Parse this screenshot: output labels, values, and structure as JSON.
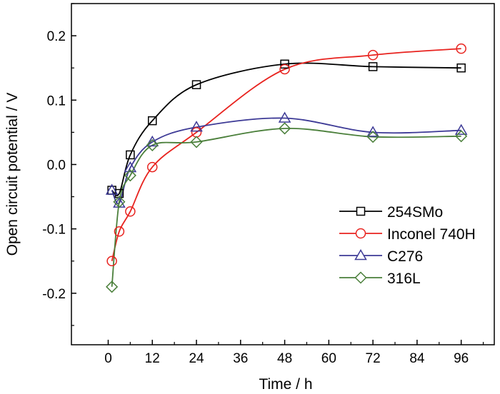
{
  "chart_data": {
    "type": "line",
    "title": "",
    "xlabel": "Time / h",
    "ylabel": "Open circuit potential / V",
    "xlim": [
      -10,
      105
    ],
    "ylim": [
      -0.28,
      0.25
    ],
    "xticks": [
      0,
      12,
      24,
      36,
      48,
      60,
      72,
      84,
      96
    ],
    "yticks": [
      -0.2,
      -0.1,
      0.0,
      0.1,
      0.2
    ],
    "ytick_labels": [
      "-0.2",
      "-0.1",
      "0.0",
      "0.1",
      "0.2"
    ],
    "grid": false,
    "legend_placement": "bottom-right",
    "series": [
      {
        "name": "254SMo",
        "color": "#000000",
        "marker": "square",
        "x": [
          1,
          3,
          6,
          12,
          24,
          48,
          72,
          96
        ],
        "y": [
          -0.04,
          -0.045,
          0.015,
          0.068,
          0.124,
          0.156,
          0.152,
          0.15
        ]
      },
      {
        "name": "Inconel 740H",
        "color": "#e8231f",
        "marker": "circle",
        "x": [
          1,
          3,
          6,
          12,
          24,
          48,
          72,
          96
        ],
        "y": [
          -0.15,
          -0.104,
          -0.073,
          -0.004,
          0.05,
          0.148,
          0.17,
          0.18
        ]
      },
      {
        "name": "C276",
        "color": "#3d3a96",
        "marker": "triangle",
        "x": [
          1,
          3,
          6,
          12,
          24,
          48,
          72,
          96
        ],
        "y": [
          -0.04,
          -0.06,
          -0.005,
          0.035,
          0.058,
          0.072,
          0.05,
          0.053
        ]
      },
      {
        "name": "316L",
        "color": "#4a7f3a",
        "marker": "diamond",
        "x": [
          1,
          3,
          6,
          12,
          24,
          48,
          72,
          96
        ],
        "y": [
          -0.19,
          -0.058,
          -0.017,
          0.03,
          0.035,
          0.056,
          0.043,
          0.044
        ]
      }
    ]
  }
}
